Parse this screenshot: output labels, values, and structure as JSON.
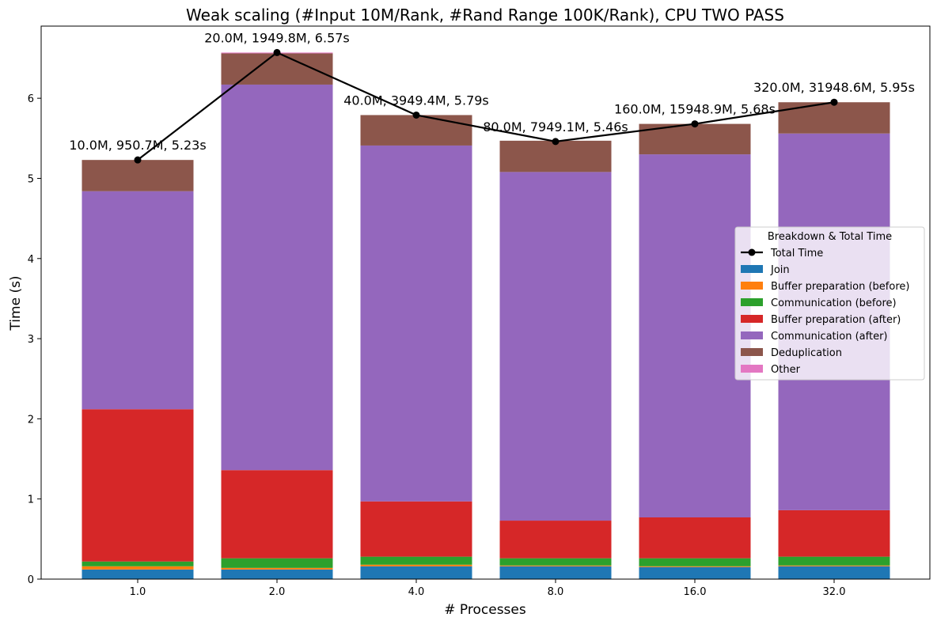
{
  "chart_data": {
    "type": "bar",
    "stacked": true,
    "title": "Weak scaling (#Input 10M/Rank, #Rand Range 100K/Rank), CPU TWO PASS",
    "xlabel": "# Processes",
    "ylabel": "Time (s)",
    "categories": [
      "1.0",
      "2.0",
      "4.0",
      "8.0",
      "16.0",
      "32.0"
    ],
    "ylim": [
      0,
      6.9
    ],
    "yticks": [
      "0",
      "1",
      "2",
      "3",
      "4",
      "5",
      "6"
    ],
    "grid": false,
    "legend": {
      "title": "Breakdown & Total Time",
      "placement": "center-right"
    },
    "series": [
      {
        "name": "Join",
        "color": "#1f77b4",
        "values": [
          0.12,
          0.12,
          0.16,
          0.16,
          0.15,
          0.16
        ]
      },
      {
        "name": "Buffer preparation (before)",
        "color": "#ff7f0e",
        "values": [
          0.04,
          0.02,
          0.02,
          0.01,
          0.01,
          0.01
        ]
      },
      {
        "name": "Communication (before)",
        "color": "#2ca02c",
        "values": [
          0.06,
          0.12,
          0.1,
          0.09,
          0.1,
          0.11
        ]
      },
      {
        "name": "Buffer preparation (after)",
        "color": "#d62728",
        "values": [
          1.9,
          1.1,
          0.69,
          0.47,
          0.51,
          0.58
        ]
      },
      {
        "name": "Communication (after)",
        "color": "#9467bd",
        "values": [
          2.72,
          4.81,
          4.44,
          4.35,
          4.53,
          4.7
        ]
      },
      {
        "name": "Deduplication",
        "color": "#8c564b",
        "values": [
          0.39,
          0.39,
          0.38,
          0.39,
          0.38,
          0.39
        ]
      },
      {
        "name": "Other",
        "color": "#e377c2",
        "values": [
          0.0,
          0.01,
          0.0,
          -0.01,
          0.0,
          0.0
        ]
      }
    ],
    "total_line": {
      "name": "Total Time",
      "color": "#000000",
      "values": [
        5.23,
        6.57,
        5.79,
        5.46,
        5.68,
        5.95
      ]
    },
    "annotations": [
      "10.0M, 950.7M, 5.23s",
      "20.0M, 1949.8M, 6.57s",
      "40.0M, 3949.4M, 5.79s",
      "80.0M, 7949.1M, 5.46s",
      "160.0M, 15948.9M, 5.68s",
      "320.0M, 31948.6M, 5.95s"
    ]
  }
}
